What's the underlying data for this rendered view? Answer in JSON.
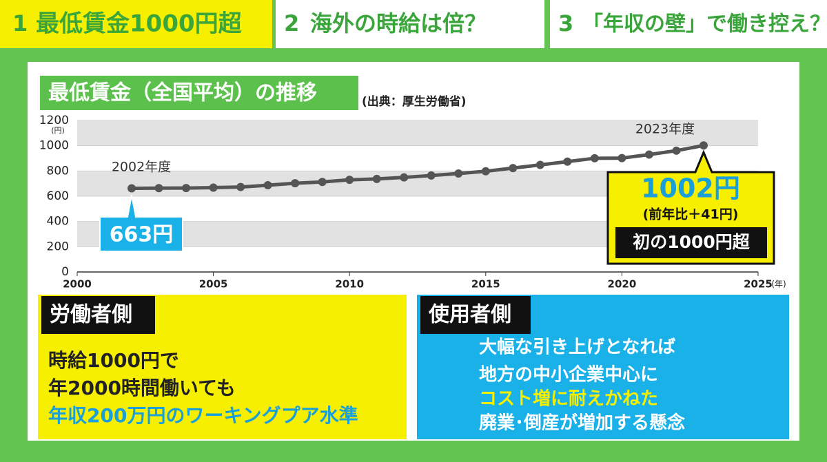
{
  "tabs": [
    {
      "number": "1",
      "label": "最低賃金1000円超"
    },
    {
      "number": "2",
      "label": "海外の時給は倍？"
    },
    {
      "number": "3",
      "label": "「年収の壁」で働き控え？"
    }
  ],
  "chart_data": {
    "type": "line",
    "title": "最低賃金（全国平均）の推移",
    "source": "(出典：厚生労働省)",
    "y_unit": "(円)",
    "x_unit": "(年)",
    "x": [
      2002,
      2003,
      2004,
      2005,
      2006,
      2007,
      2008,
      2009,
      2010,
      2011,
      2012,
      2013,
      2014,
      2015,
      2016,
      2017,
      2018,
      2019,
      2020,
      2021,
      2022,
      2023
    ],
    "series": [
      {
        "name": "最低賃金",
        "color": "#555555",
        "values": [
          663,
          664,
          665,
          668,
          673,
          687,
          703,
          713,
          730,
          737,
          749,
          764,
          780,
          798,
          823,
          848,
          874,
          901,
          902,
          930,
          961,
          1002
        ],
        "value_labels": [
          "663円",
          null,
          null,
          null,
          null,
          null,
          null,
          null,
          null,
          null,
          null,
          null,
          null,
          null,
          null,
          null,
          null,
          null,
          null,
          null,
          null,
          "1002円"
        ]
      }
    ],
    "xlim": [
      2000,
      2025
    ],
    "xticks": [
      2000,
      2005,
      2010,
      2015,
      2020,
      2025
    ],
    "ylim": [
      0,
      1200
    ],
    "yticks": [
      0,
      200,
      400,
      600,
      800,
      1000,
      1200
    ],
    "annotations": {
      "start": "2002年度",
      "end": "2023年度",
      "end_note": "(前年比＋41円)",
      "end_badge": "初の1000円超"
    }
  },
  "panels": [
    {
      "title": "労働者側",
      "lines": [
        "時給1000円で",
        "年2000時間働いても",
        "年収200万円のワーキングプア水準"
      ]
    },
    {
      "title": "使用者側",
      "lines": [
        "大幅な引き上げとなれば",
        "地方の中小企業中心に",
        "コスト増に耐えかねた",
        "廃業･倒産が増加する懸念"
      ]
    }
  ]
}
